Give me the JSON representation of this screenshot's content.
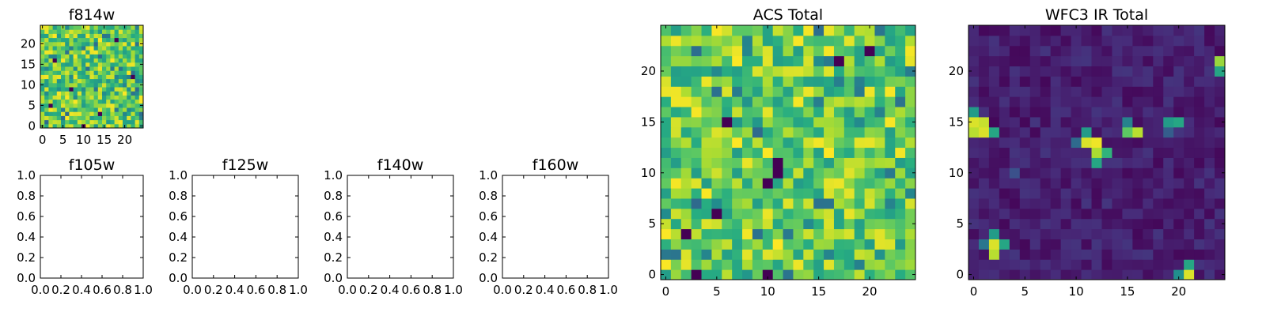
{
  "chart_data": [
    {
      "type": "heatmap",
      "title": "f814w",
      "colormap": "viridis",
      "xticks": [
        "0",
        "5",
        "10",
        "15",
        "20"
      ],
      "yticks": [
        "0",
        "5",
        "10",
        "15",
        "20"
      ],
      "grid": false,
      "legend": "none"
    },
    {
      "type": "heatmap",
      "title": "f105w",
      "empty": true,
      "xticks": [
        "0.0",
        "0.2",
        "0.4",
        "0.6",
        "0.8",
        "1.0"
      ],
      "yticks": [
        "0.0",
        "0.2",
        "0.4",
        "0.6",
        "0.8",
        "1.0"
      ],
      "grid": false,
      "legend": "none"
    },
    {
      "type": "heatmap",
      "title": "f125w",
      "empty": true,
      "xticks": [
        "0.0",
        "0.2",
        "0.4",
        "0.6",
        "0.8",
        "1.0"
      ],
      "yticks": [
        "0.0",
        "0.2",
        "0.4",
        "0.6",
        "0.8",
        "1.0"
      ],
      "grid": false,
      "legend": "none"
    },
    {
      "type": "heatmap",
      "title": "f140w",
      "empty": true,
      "xticks": [
        "0.0",
        "0.2",
        "0.4",
        "0.6",
        "0.8",
        "1.0"
      ],
      "yticks": [
        "0.0",
        "0.2",
        "0.4",
        "0.6",
        "0.8",
        "1.0"
      ],
      "grid": false,
      "legend": "none"
    },
    {
      "type": "heatmap",
      "title": "f160w",
      "empty": true,
      "xticks": [
        "0.0",
        "0.2",
        "0.4",
        "0.6",
        "0.8",
        "1.0"
      ],
      "yticks": [
        "0.0",
        "0.2",
        "0.4",
        "0.6",
        "0.8",
        "1.0"
      ],
      "grid": false,
      "legend": "none"
    },
    {
      "type": "heatmap",
      "title": "ACS Total",
      "colormap": "viridis",
      "xticks": [
        "0",
        "5",
        "10",
        "15",
        "20"
      ],
      "yticks": [
        "0",
        "5",
        "10",
        "15",
        "20"
      ],
      "grid": false,
      "legend": "none"
    },
    {
      "type": "heatmap",
      "title": "WFC3 IR Total",
      "colormap": "viridis",
      "xticks": [
        "0",
        "5",
        "10",
        "15",
        "20"
      ],
      "yticks": [
        "0",
        "5",
        "10",
        "15",
        "20"
      ],
      "grid": false,
      "legend": "none",
      "bright_pixels": [
        {
          "x": 0,
          "y": 15,
          "v": 0.95
        },
        {
          "x": 1,
          "y": 15,
          "v": 0.92
        },
        {
          "x": 0,
          "y": 14,
          "v": 0.9
        },
        {
          "x": 1,
          "y": 14,
          "v": 0.95
        },
        {
          "x": 2,
          "y": 14,
          "v": 0.6
        },
        {
          "x": 0,
          "y": 16,
          "v": 0.55
        },
        {
          "x": 11,
          "y": 13,
          "v": 0.95
        },
        {
          "x": 12,
          "y": 13,
          "v": 0.98
        },
        {
          "x": 12,
          "y": 12,
          "v": 0.88
        },
        {
          "x": 13,
          "y": 12,
          "v": 0.65
        },
        {
          "x": 11,
          "y": 14,
          "v": 0.55
        },
        {
          "x": 12,
          "y": 11,
          "v": 0.6
        },
        {
          "x": 10,
          "y": 13,
          "v": 0.35
        },
        {
          "x": 15,
          "y": 14,
          "v": 0.75
        },
        {
          "x": 16,
          "y": 14,
          "v": 0.9
        },
        {
          "x": 15,
          "y": 15,
          "v": 0.45
        },
        {
          "x": 19,
          "y": 15,
          "v": 0.55
        },
        {
          "x": 20,
          "y": 15,
          "v": 0.6
        },
        {
          "x": 19,
          "y": 14,
          "v": 0.3
        },
        {
          "x": 2,
          "y": 4,
          "v": 0.55
        },
        {
          "x": 2,
          "y": 3,
          "v": 0.95
        },
        {
          "x": 2,
          "y": 2,
          "v": 0.9
        },
        {
          "x": 3,
          "y": 3,
          "v": 0.6
        },
        {
          "x": 1,
          "y": 3,
          "v": 0.4
        },
        {
          "x": 21,
          "y": 0,
          "v": 0.95
        },
        {
          "x": 21,
          "y": 1,
          "v": 0.6
        },
        {
          "x": 20,
          "y": 0,
          "v": 0.5
        },
        {
          "x": 24,
          "y": 21,
          "v": 0.85
        },
        {
          "x": 24,
          "y": 20,
          "v": 0.6
        },
        {
          "x": 4,
          "y": 10,
          "v": 0.25
        }
      ]
    }
  ]
}
